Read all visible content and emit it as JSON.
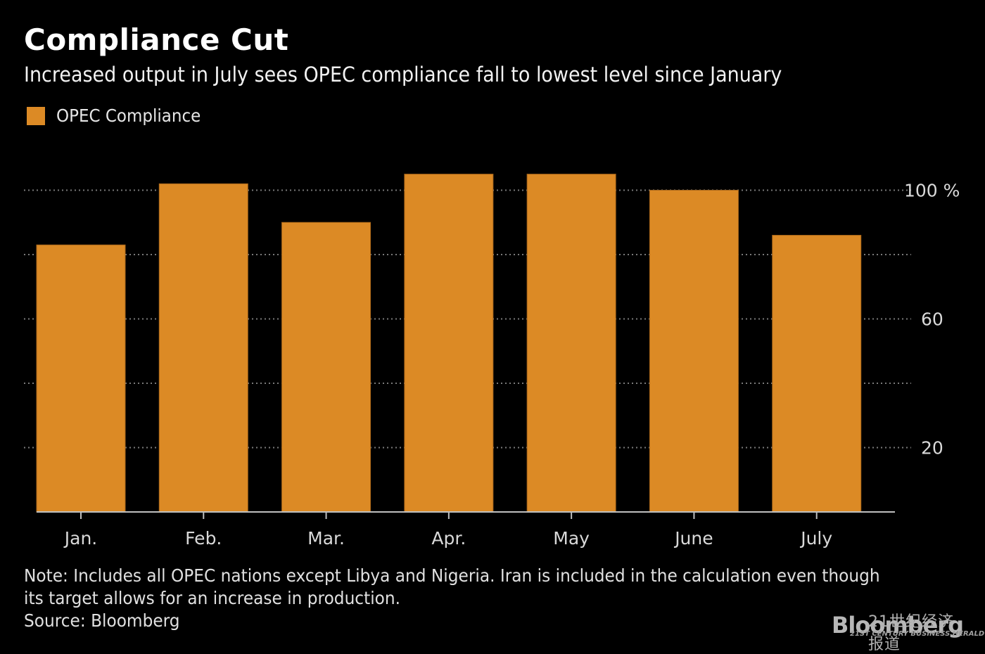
{
  "chart_data": {
    "type": "bar",
    "title": "Compliance Cut",
    "subtitle": "Increased output in July sees OPEC compliance fall to lowest level since January",
    "categories": [
      "Jan.",
      "Feb.",
      "Mar.",
      "Apr.",
      "May",
      "June",
      "July"
    ],
    "series": [
      {
        "name": "OPEC Compliance",
        "color": "#dc8a25",
        "values": [
          83,
          102,
          90,
          105,
          105,
          100,
          86
        ]
      }
    ],
    "xlabel": "",
    "ylabel": "",
    "ylim": [
      0,
      105
    ],
    "yticks": [
      0,
      20,
      40,
      60,
      80,
      100
    ],
    "ytick_labels": [
      {
        "value": 100,
        "label": "100 %"
      },
      {
        "value": 60,
        "label": "60"
      },
      {
        "value": 20,
        "label": "20"
      }
    ],
    "grid": true,
    "grid_style": "dotted",
    "legend_position": "top-left",
    "y_axis_side": "right"
  },
  "legend": {
    "label": "OPEC Compliance",
    "color": "#dc8a25"
  },
  "footnote": {
    "note_line1": "Note: Includes all OPEC nations except Libya and Nigeria. Iran is included in the calculation even though",
    "note_line2": "its target allows for an increase in production.",
    "source": "Source: Bloomberg"
  },
  "watermark": {
    "brand": "Bloomberg",
    "cn_text": "21世纪经济报道",
    "en_text": "21ST CENTURY BUSINESS HERALD"
  },
  "colors": {
    "background": "#000000",
    "bar": "#dc8a25",
    "grid": "#7a7a7a",
    "axis": "#bfbfbf",
    "tick_text": "#d9d9d9"
  }
}
